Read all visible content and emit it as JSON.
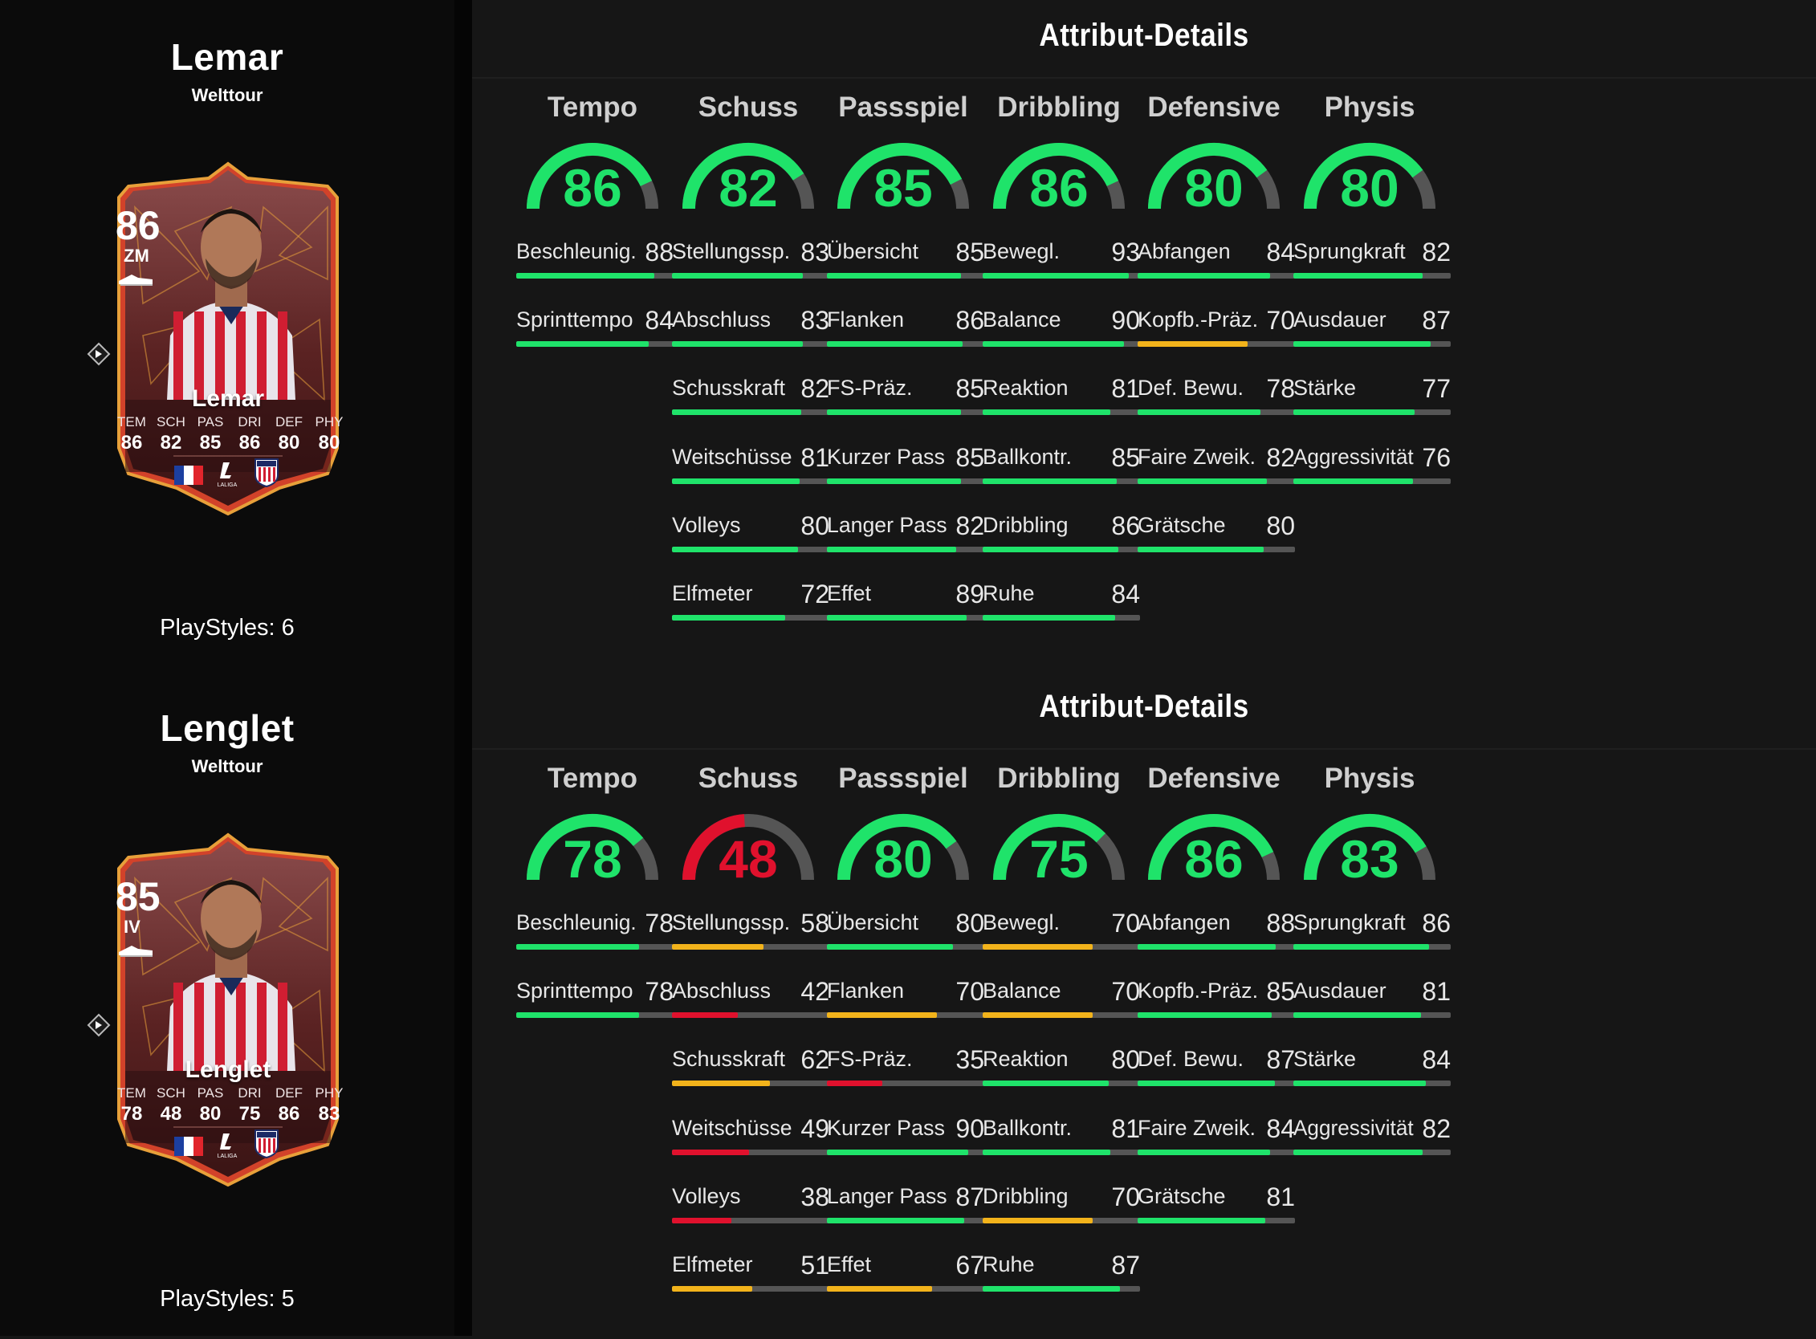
{
  "colors": {
    "green": "#1fe36a",
    "yellow": "#f2b31b",
    "red": "#e0112d",
    "track": "#555555",
    "card_dark": "#5c1f1f",
    "card_border": "#d2422a"
  },
  "players": [
    {
      "name": "Lemar",
      "subtitle": "Welttour",
      "playstyles": "PlayStyles: 6",
      "card": {
        "rating": "86",
        "position": "ZM",
        "name": "Lemar",
        "stats": [
          {
            "label": "TEM",
            "value": "86"
          },
          {
            "label": "SCH",
            "value": "82"
          },
          {
            "label": "PAS",
            "value": "85"
          },
          {
            "label": "DRI",
            "value": "86"
          },
          {
            "label": "DEF",
            "value": "80"
          },
          {
            "label": "PHY",
            "value": "80"
          }
        ],
        "league": "LALIGA"
      },
      "details_title": "Attribut-Details",
      "categories": [
        {
          "name": "Tempo",
          "value": 86,
          "color": "green",
          "attrs": [
            {
              "name": "Beschleunig.",
              "value": 88,
              "color": "green"
            },
            {
              "name": "Sprinttempo",
              "value": 84,
              "color": "green"
            }
          ]
        },
        {
          "name": "Schuss",
          "value": 82,
          "color": "green",
          "attrs": [
            {
              "name": "Stellungssp.",
              "value": 83,
              "color": "green"
            },
            {
              "name": "Abschluss",
              "value": 83,
              "color": "green"
            },
            {
              "name": "Schusskraft",
              "value": 82,
              "color": "green"
            },
            {
              "name": "Weitschüsse",
              "value": 81,
              "color": "green"
            },
            {
              "name": "Volleys",
              "value": 80,
              "color": "green"
            },
            {
              "name": "Elfmeter",
              "value": 72,
              "color": "green"
            }
          ]
        },
        {
          "name": "Passspiel",
          "value": 85,
          "color": "green",
          "attrs": [
            {
              "name": "Übersicht",
              "value": 85,
              "color": "green"
            },
            {
              "name": "Flanken",
              "value": 86,
              "color": "green"
            },
            {
              "name": "FS-Präz.",
              "value": 85,
              "color": "green"
            },
            {
              "name": "Kurzer Pass",
              "value": 85,
              "color": "green"
            },
            {
              "name": "Langer Pass",
              "value": 82,
              "color": "green"
            },
            {
              "name": "Effet",
              "value": 89,
              "color": "green"
            }
          ]
        },
        {
          "name": "Dribbling",
          "value": 86,
          "color": "green",
          "attrs": [
            {
              "name": "Bewegl.",
              "value": 93,
              "color": "green"
            },
            {
              "name": "Balance",
              "value": 90,
              "color": "green"
            },
            {
              "name": "Reaktion",
              "value": 81,
              "color": "green"
            },
            {
              "name": "Ballkontr.",
              "value": 85,
              "color": "green"
            },
            {
              "name": "Dribbling",
              "value": 86,
              "color": "green"
            },
            {
              "name": "Ruhe",
              "value": 84,
              "color": "green"
            }
          ]
        },
        {
          "name": "Defensive",
          "value": 80,
          "color": "green",
          "attrs": [
            {
              "name": "Abfangen",
              "value": 84,
              "color": "green"
            },
            {
              "name": "Kopfb.-Präz.",
              "value": 70,
              "color": "yellow"
            },
            {
              "name": "Def. Bewu.",
              "value": 78,
              "color": "green"
            },
            {
              "name": "Faire Zweik.",
              "value": 82,
              "color": "green"
            },
            {
              "name": "Grätsche",
              "value": 80,
              "color": "green"
            }
          ]
        },
        {
          "name": "Physis",
          "value": 80,
          "color": "green",
          "attrs": [
            {
              "name": "Sprungkraft",
              "value": 82,
              "color": "green"
            },
            {
              "name": "Ausdauer",
              "value": 87,
              "color": "green"
            },
            {
              "name": "Stärke",
              "value": 77,
              "color": "green"
            },
            {
              "name": "Aggressivität",
              "value": 76,
              "color": "green"
            }
          ]
        }
      ]
    },
    {
      "name": "Lenglet",
      "subtitle": "Welttour",
      "playstyles": "PlayStyles: 5",
      "card": {
        "rating": "85",
        "position": "IV",
        "name": "Lenglet",
        "stats": [
          {
            "label": "TEM",
            "value": "78"
          },
          {
            "label": "SCH",
            "value": "48"
          },
          {
            "label": "PAS",
            "value": "80"
          },
          {
            "label": "DRI",
            "value": "75"
          },
          {
            "label": "DEF",
            "value": "86"
          },
          {
            "label": "PHY",
            "value": "83"
          }
        ],
        "league": "LALIGA"
      },
      "details_title": "Attribut-Details",
      "categories": [
        {
          "name": "Tempo",
          "value": 78,
          "color": "green",
          "attrs": [
            {
              "name": "Beschleunig.",
              "value": 78,
              "color": "green"
            },
            {
              "name": "Sprinttempo",
              "value": 78,
              "color": "green"
            }
          ]
        },
        {
          "name": "Schuss",
          "value": 48,
          "color": "red",
          "attrs": [
            {
              "name": "Stellungssp.",
              "value": 58,
              "color": "yellow"
            },
            {
              "name": "Abschluss",
              "value": 42,
              "color": "red"
            },
            {
              "name": "Schusskraft",
              "value": 62,
              "color": "yellow"
            },
            {
              "name": "Weitschüsse",
              "value": 49,
              "color": "red"
            },
            {
              "name": "Volleys",
              "value": 38,
              "color": "red"
            },
            {
              "name": "Elfmeter",
              "value": 51,
              "color": "yellow"
            }
          ]
        },
        {
          "name": "Passspiel",
          "value": 80,
          "color": "green",
          "attrs": [
            {
              "name": "Übersicht",
              "value": 80,
              "color": "green"
            },
            {
              "name": "Flanken",
              "value": 70,
              "color": "yellow"
            },
            {
              "name": "FS-Präz.",
              "value": 35,
              "color": "red"
            },
            {
              "name": "Kurzer Pass",
              "value": 90,
              "color": "green"
            },
            {
              "name": "Langer Pass",
              "value": 87,
              "color": "green"
            },
            {
              "name": "Effet",
              "value": 67,
              "color": "yellow"
            }
          ]
        },
        {
          "name": "Dribbling",
          "value": 75,
          "color": "green",
          "attrs": [
            {
              "name": "Bewegl.",
              "value": 70,
              "color": "yellow"
            },
            {
              "name": "Balance",
              "value": 70,
              "color": "yellow"
            },
            {
              "name": "Reaktion",
              "value": 80,
              "color": "green"
            },
            {
              "name": "Ballkontr.",
              "value": 81,
              "color": "green"
            },
            {
              "name": "Dribbling",
              "value": 70,
              "color": "yellow"
            },
            {
              "name": "Ruhe",
              "value": 87,
              "color": "green"
            }
          ]
        },
        {
          "name": "Defensive",
          "value": 86,
          "color": "green",
          "attrs": [
            {
              "name": "Abfangen",
              "value": 88,
              "color": "green"
            },
            {
              "name": "Kopfb.-Präz.",
              "value": 85,
              "color": "green"
            },
            {
              "name": "Def. Bewu.",
              "value": 87,
              "color": "green"
            },
            {
              "name": "Faire Zweik.",
              "value": 84,
              "color": "green"
            },
            {
              "name": "Grätsche",
              "value": 81,
              "color": "green"
            }
          ]
        },
        {
          "name": "Physis",
          "value": 83,
          "color": "green",
          "attrs": [
            {
              "name": "Sprungkraft",
              "value": 86,
              "color": "green"
            },
            {
              "name": "Ausdauer",
              "value": 81,
              "color": "green"
            },
            {
              "name": "Stärke",
              "value": 84,
              "color": "green"
            },
            {
              "name": "Aggressivität",
              "value": 82,
              "color": "green"
            }
          ]
        }
      ]
    }
  ]
}
